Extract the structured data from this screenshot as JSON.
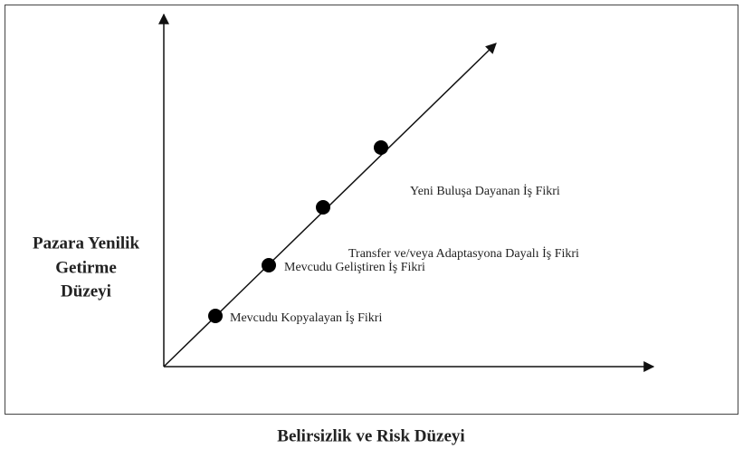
{
  "y_axis_label": [
    "Pazara Yenilik",
    "Getirme",
    "Düzeyi"
  ],
  "x_axis_label": "Belirsizlik ve Risk Düzeyi",
  "points": [
    {
      "label": "Mevcudu Kopyalayan İş Fikri"
    },
    {
      "label": "Mevcudu Geliştiren İş Fikri"
    },
    {
      "label": "Transfer ve/veya Adaptasyona Dayalı İş Fikri"
    },
    {
      "label": "Yeni Buluşa Dayanan İş Fikri"
    }
  ]
}
